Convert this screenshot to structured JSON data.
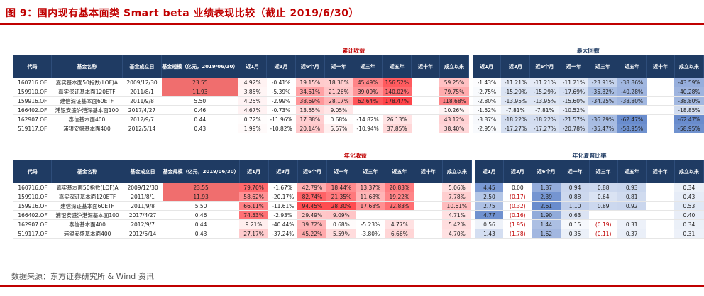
{
  "title": "图 9：国内现有基本面类 Smart beta 业绩表现比较（截止 2019/6/30）",
  "source": "数据来源：东方证券研究所 & Wind 资讯",
  "table1": {
    "left_section": "累计收益",
    "right_section": "最大回撤",
    "headers": [
      "代码",
      "基金名称",
      "基金成立日",
      "基金规模（亿元，2019/06/30）",
      "近1月",
      "近3月",
      "近6个月",
      "近一年",
      "近三年",
      "近五年",
      "近十年",
      "成立以来"
    ],
    "right_headers": [
      "近1月",
      "近3月",
      "近6个月",
      "近一年",
      "近三年",
      "近五年",
      "近十年",
      "成立以来"
    ],
    "rows": [
      {
        "code": "160716.OF",
        "name": "嘉实基本面50指数(LOF)A",
        "date": "2009/12/30",
        "size": "23.55",
        "ret": [
          "4.92%",
          "-0.41%",
          "19.15%",
          "18.36%",
          "45.49%",
          "156.52%",
          "",
          "59.25%"
        ],
        "dd": [
          "-1.43%",
          "-11.21%",
          "-11.21%",
          "-11.21%",
          "-23.91%",
          "-38.86%",
          "",
          "-43.59%"
        ]
      },
      {
        "code": "159910.OF",
        "name": "嘉实深证基本面120ETF",
        "date": "2011/8/1",
        "size": "11.93",
        "ret": [
          "3.85%",
          "-5.39%",
          "34.51%",
          "21.26%",
          "39.09%",
          "140.02%",
          "",
          "79.75%"
        ],
        "dd": [
          "-2.75%",
          "-15.29%",
          "-15.29%",
          "-17.69%",
          "-35.82%",
          "-40.28%",
          "",
          "-40.28%"
        ]
      },
      {
        "code": "159916.OF",
        "name": "建信深证基本面60ETF",
        "date": "2011/9/8",
        "size": "5.50",
        "ret": [
          "4.25%",
          "-2.99%",
          "38.69%",
          "28.17%",
          "62.64%",
          "178.47%",
          "",
          "118.68%"
        ],
        "dd": [
          "-2.80%",
          "-13.95%",
          "-13.95%",
          "-15.60%",
          "-34.25%",
          "-38.80%",
          "",
          "-38.80%"
        ]
      },
      {
        "code": "166402.OF",
        "name": "浦银安盛沪港深基本面100",
        "date": "2017/4/27",
        "size": "0.46",
        "ret": [
          "4.67%",
          "-0.73%",
          "13.55%",
          "9.05%",
          "",
          "",
          "",
          "10.26%"
        ],
        "dd": [
          "-1.52%",
          "-7.81%",
          "-7.81%",
          "-10.52%",
          "",
          "",
          "",
          "-18.85%"
        ]
      },
      {
        "code": "162907.OF",
        "name": "泰信基本面400",
        "date": "2012/9/7",
        "size": "0.44",
        "ret": [
          "0.72%",
          "-11.96%",
          "17.88%",
          "0.68%",
          "-14.82%",
          "26.13%",
          "",
          "43.12%"
        ],
        "dd": [
          "-3.87%",
          "-18.22%",
          "-18.22%",
          "-21.57%",
          "-36.29%",
          "-62.47%",
          "",
          "-62.47%"
        ]
      },
      {
        "code": "519117.OF",
        "name": "浦银安盛基本面400",
        "date": "2012/5/14",
        "size": "0.43",
        "ret": [
          "1.99%",
          "-10.82%",
          "20.14%",
          "5.57%",
          "-10.94%",
          "37.85%",
          "",
          "38.40%"
        ],
        "dd": [
          "-2.95%",
          "-17.27%",
          "-17.27%",
          "-20.78%",
          "-35.47%",
          "-58.95%",
          "",
          "-58.95%"
        ]
      }
    ]
  },
  "table2": {
    "left_section": "年化收益",
    "right_section": "年化夏普比率",
    "headers": [
      "代码",
      "基金名称",
      "基金成立日",
      "基金规模（亿元，2019/06/30）",
      "近1月",
      "近3月",
      "近6个月",
      "近一年",
      "近三年",
      "近五年",
      "近十年",
      "成立以来"
    ],
    "right_headers": [
      "近1月",
      "近3月",
      "近6个月",
      "近一年",
      "近三年",
      "近五年",
      "近十年",
      "成立以来"
    ],
    "rows": [
      {
        "code": "160716.OF",
        "name": "嘉实基本面50指数(LOF)A",
        "date": "2009/12/30",
        "size": "23.55",
        "ret": [
          "79.70%",
          "-1.67%",
          "42.79%",
          "18.44%",
          "13.37%",
          "20.83%",
          "",
          "5.06%"
        ],
        "dd": [
          "4.45",
          "0.00",
          "1.87",
          "0.94",
          "0.88",
          "0.93",
          "",
          "0.34"
        ]
      },
      {
        "code": "159910.OF",
        "name": "嘉实深证基本面120ETF",
        "date": "2011/8/1",
        "size": "11.93",
        "ret": [
          "58.62%",
          "-20.17%",
          "82.74%",
          "21.35%",
          "11.68%",
          "19.22%",
          "",
          "7.78%"
        ],
        "dd": [
          "2.50",
          "(0.17)",
          "2.39",
          "0.88",
          "0.64",
          "0.81",
          "",
          "0.43"
        ]
      },
      {
        "code": "159916.OF",
        "name": "建信深证基本面60ETF",
        "date": "2011/9/8",
        "size": "5.50",
        "ret": [
          "66.11%",
          "-11.61%",
          "94.45%",
          "28.30%",
          "17.68%",
          "22.83%",
          "",
          "10.61%"
        ],
        "dd": [
          "2.75",
          "(0.32)",
          "2.61",
          "1.10",
          "0.89",
          "0.92",
          "",
          "0.53"
        ]
      },
      {
        "code": "166402.OF",
        "name": "浦银安盛沪港深基本面100",
        "date": "2017/4/27",
        "size": "0.46",
        "ret": [
          "74.53%",
          "-2.93%",
          "29.49%",
          "9.09%",
          "",
          "",
          "",
          "4.71%"
        ],
        "dd": [
          "4.77",
          "(0.16)",
          "1.90",
          "0.63",
          "",
          "",
          "",
          "0.40"
        ]
      },
      {
        "code": "162907.OF",
        "name": "泰信基本面400",
        "date": "2012/9/7",
        "size": "0.44",
        "ret": [
          "9.21%",
          "-40.44%",
          "39.72%",
          "0.68%",
          "-5.23%",
          "4.77%",
          "",
          "5.42%"
        ],
        "dd": [
          "0.56",
          "(1.95)",
          "1.44",
          "0.15",
          "(0.19)",
          "0.31",
          "",
          "0.34"
        ]
      },
      {
        "code": "519117.OF",
        "name": "浦银安盛基本面400",
        "date": "2012/5/14",
        "size": "0.43",
        "ret": [
          "27.17%",
          "-37.24%",
          "45.22%",
          "5.59%",
          "-3.80%",
          "6.66%",
          "",
          "4.70%"
        ],
        "dd": [
          "1.43",
          "(1.78)",
          "1.62",
          "0.35",
          "(0.11)",
          "0.37",
          "",
          "0.31"
        ]
      }
    ]
  },
  "colors": {
    "title": "#c00000",
    "header_bg": "#1f3b63",
    "heat_red_strong": "#e8474d",
    "heat_blue_strong": "#6f8fcd"
  }
}
